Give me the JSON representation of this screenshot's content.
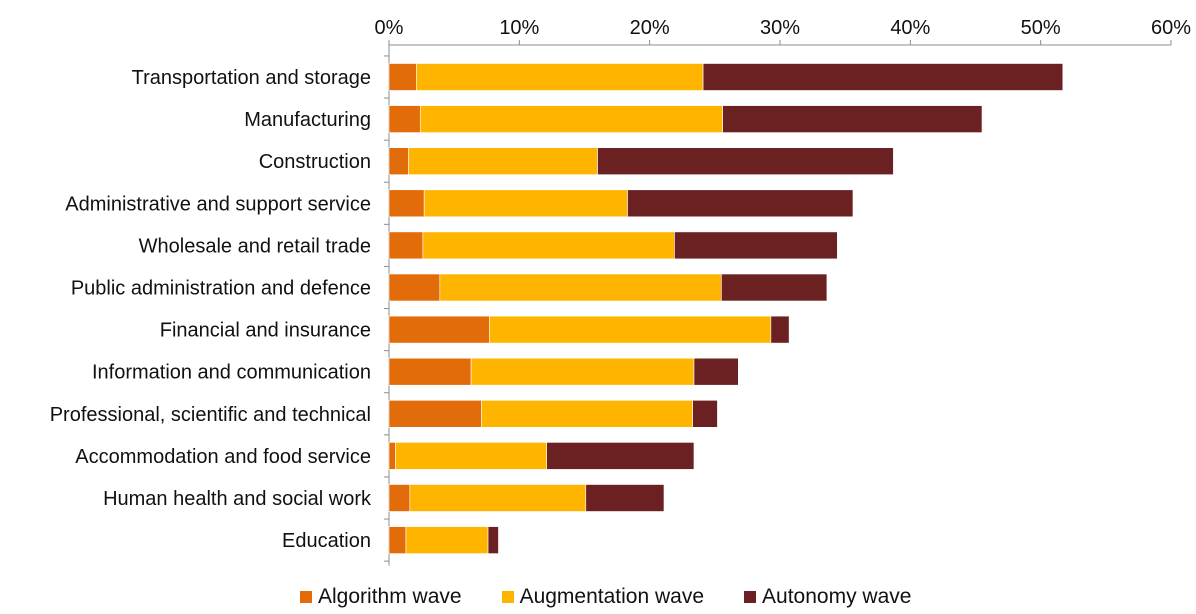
{
  "chart_data": {
    "type": "bar",
    "orientation": "horizontal",
    "stacked": true,
    "title": "",
    "xlabel": "",
    "ylabel": "",
    "xlim": [
      0,
      60
    ],
    "x_ticks": [
      "0%",
      "10%",
      "20%",
      "30%",
      "40%",
      "50%",
      "60%"
    ],
    "categories": [
      "Transportation and storage",
      "Manufacturing",
      "Construction",
      "Administrative and support service",
      "Wholesale and retail trade",
      "Public administration and defence",
      "Financial and insurance",
      "Information and communication",
      "Professional, scientific and technical",
      "Accommodation and food service",
      "Human health and social work",
      "Education"
    ],
    "series": [
      {
        "name": "Algorithm wave",
        "color": "#E36C0A",
        "values": [
          2.1,
          2.4,
          1.5,
          2.7,
          2.6,
          3.9,
          7.7,
          6.3,
          7.1,
          0.5,
          1.6,
          1.3
        ]
      },
      {
        "name": "Augmentation wave",
        "color": "#FFB400",
        "values": [
          22.0,
          23.2,
          14.5,
          15.6,
          19.3,
          21.6,
          21.6,
          17.1,
          16.2,
          11.6,
          13.5,
          6.3
        ]
      },
      {
        "name": "Autonomy wave",
        "color": "#6B2122",
        "values": [
          27.6,
          19.9,
          22.7,
          17.3,
          12.5,
          8.1,
          1.4,
          3.4,
          1.9,
          11.3,
          6.0,
          0.8
        ]
      }
    ],
    "grid": false,
    "legend_position": "bottom"
  }
}
